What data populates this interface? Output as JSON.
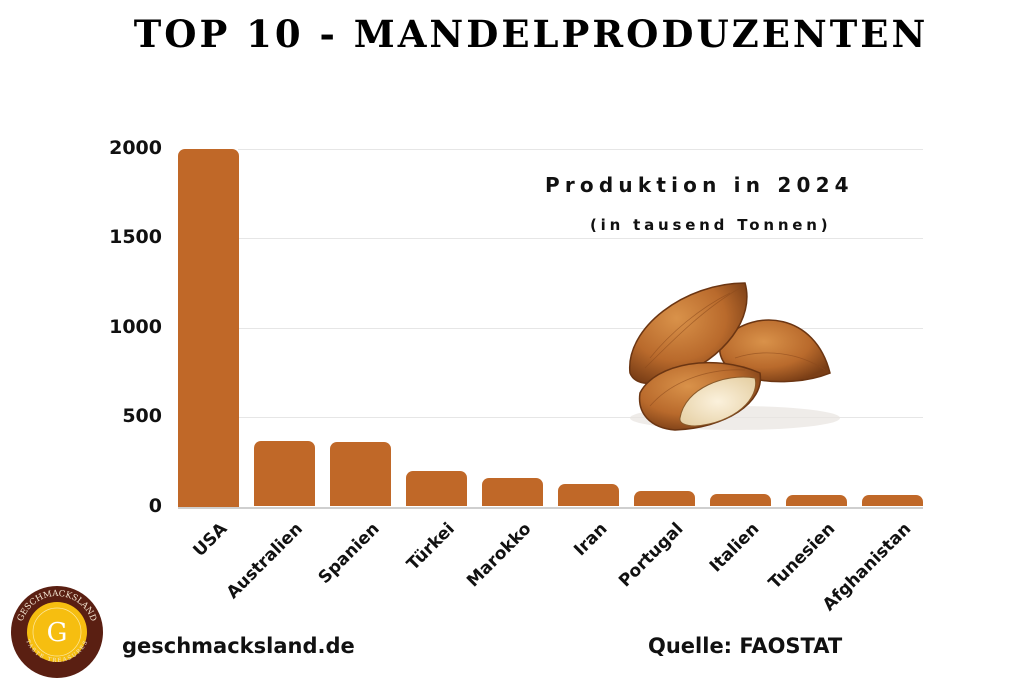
{
  "header": {
    "title": "TOP 10 - MANDELPRODUZENTEN"
  },
  "annotation": {
    "line1": "Produktion in 2024",
    "line2": "(in tausend Tonnen)"
  },
  "footer": {
    "url": "geschmacksland.de",
    "source": "Quelle: FAOSTAT"
  },
  "logo": {
    "brand": "GESCHMACKSLAND",
    "tagline": "TASTE TREASURES",
    "letter": "G",
    "colors": {
      "ring": "#5a1f12",
      "center": "#f6be10"
    }
  },
  "colors": {
    "bar": "#c06828",
    "grid": "#e6e6e6",
    "text": "#111111"
  },
  "yaxis": {
    "ticks": [
      "0",
      "500",
      "1000",
      "1500",
      "2000"
    ]
  },
  "chart_data": {
    "type": "bar",
    "title": "TOP 10 - MANDELPRODUZENTEN",
    "subtitle": "Produktion in 2024 (in tausend Tonnen)",
    "xlabel": "",
    "ylabel": "",
    "categories": [
      "USA",
      "Australien",
      "Spanien",
      "Türkei",
      "Marokko",
      "Iran",
      "Portugal",
      "Italien",
      "Tunesien",
      "Afghanistan"
    ],
    "values": [
      2000,
      369,
      363,
      196,
      158,
      128,
      87,
      72,
      67,
      65
    ],
    "ylim": [
      0,
      2000
    ],
    "yticks": [
      0,
      500,
      1000,
      1500,
      2000
    ],
    "grid": true,
    "legend": null,
    "source": "FAOSTAT"
  }
}
